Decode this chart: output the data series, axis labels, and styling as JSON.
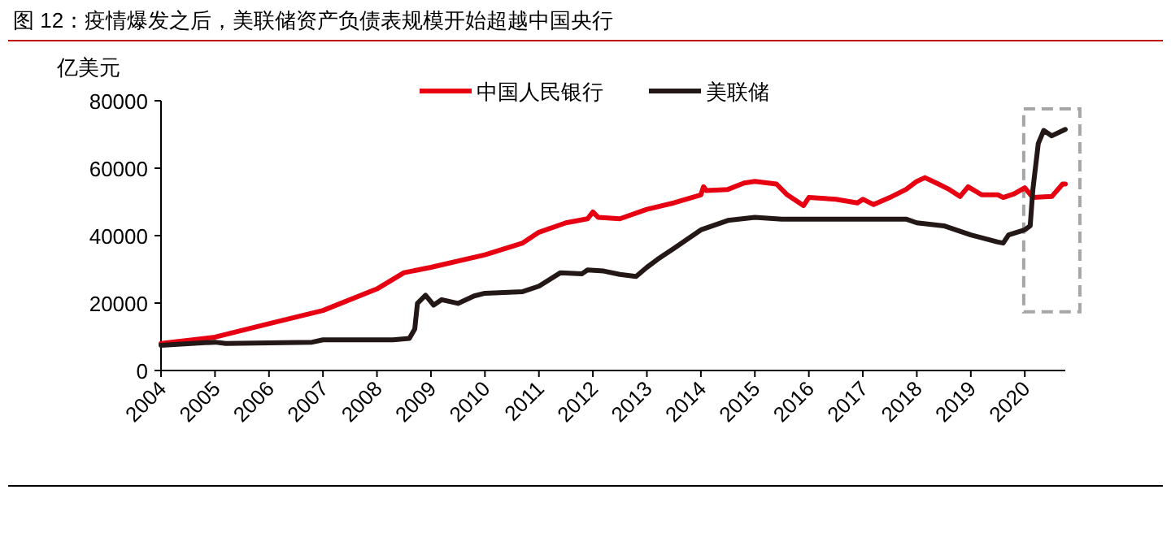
{
  "chart_data": {
    "type": "line",
    "title": "图 12：疫情爆发之后，美联储资产负债表规模开始超越中国央行",
    "ylabel": "亿美元",
    "ylim": [
      0,
      80000
    ],
    "yticks": [
      0,
      20000,
      40000,
      60000,
      80000
    ],
    "xlim": [
      2004,
      2020.75
    ],
    "xticks": [
      2004,
      2005,
      2006,
      2007,
      2008,
      2009,
      2010,
      2011,
      2012,
      2013,
      2014,
      2015,
      2016,
      2017,
      2018,
      2019,
      2020
    ],
    "grid": false,
    "legend": "top",
    "line_style": "solid",
    "marker": "none",
    "series": [
      {
        "name": "中国人民银行",
        "color": "#e60012",
        "x": [
          2004,
          2005,
          2006,
          2007,
          2008,
          2008.5,
          2009,
          2010,
          2010.7,
          2011,
          2011.5,
          2011.9,
          2012,
          2012.1,
          2012.5,
          2013,
          2013.5,
          2014,
          2014.05,
          2014.1,
          2014.5,
          2014.8,
          2015,
          2015.4,
          2015.6,
          2015.9,
          2016,
          2016.5,
          2016.9,
          2017,
          2017.2,
          2017.5,
          2017.8,
          2018,
          2018.15,
          2018.4,
          2018.6,
          2018.8,
          2018.95,
          2019.2,
          2019.5,
          2019.6,
          2019.8,
          2020,
          2020.15,
          2020.5,
          2020.7,
          2020.75
        ],
        "values": [
          8000,
          9900,
          13900,
          17800,
          24200,
          29000,
          30600,
          34300,
          37800,
          41000,
          43800,
          45000,
          47000,
          45400,
          45000,
          47800,
          49700,
          52100,
          54500,
          53400,
          53700,
          55600,
          56100,
          55300,
          52100,
          48900,
          51300,
          50800,
          49700,
          50800,
          49200,
          51300,
          53700,
          56100,
          57200,
          55300,
          53700,
          51600,
          54500,
          52100,
          52100,
          51300,
          52400,
          54200,
          51300,
          51600,
          55300,
          55300
        ]
      },
      {
        "name": "美联储",
        "color": "#231815",
        "x": [
          2004,
          2005,
          2005.2,
          2006.8,
          2007,
          2008.3,
          2008.6,
          2008.7,
          2008.75,
          2008.9,
          2009.05,
          2009.2,
          2009.5,
          2009.8,
          2010,
          2010.7,
          2011,
          2011.4,
          2011.8,
          2011.9,
          2012.2,
          2012.5,
          2012.8,
          2013,
          2013.2,
          2013.5,
          2014,
          2014.5,
          2015,
          2015.5,
          2016,
          2017,
          2017.8,
          2018,
          2018.5,
          2019,
          2019.5,
          2019.6,
          2019.7,
          2020,
          2020.1,
          2020.15,
          2020.25,
          2020.35,
          2020.5,
          2020.75
        ],
        "values": [
          7500,
          8400,
          8000,
          8400,
          9100,
          9100,
          9500,
          12300,
          19900,
          22300,
          19400,
          21000,
          19900,
          22100,
          22900,
          23400,
          25000,
          29000,
          28700,
          29800,
          29500,
          28500,
          27900,
          30600,
          33000,
          36200,
          41700,
          44500,
          45400,
          44900,
          44900,
          44900,
          44900,
          43800,
          42900,
          40200,
          38100,
          37800,
          40200,
          41700,
          42900,
          53700,
          67300,
          71200,
          69600,
          71500
        ]
      }
    ]
  }
}
